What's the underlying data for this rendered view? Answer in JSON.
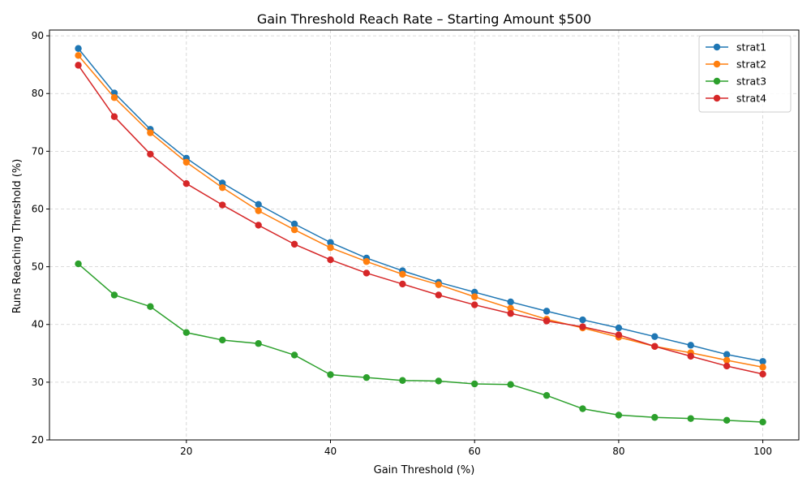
{
  "chart_data": {
    "type": "line",
    "title": "Gain Threshold Reach Rate – Starting Amount $500",
    "xlabel": "Gain Threshold (%)",
    "ylabel": "Runs Reaching Threshold (%)",
    "xlim": [
      1,
      105
    ],
    "ylim": [
      20,
      91
    ],
    "xticks": [
      20,
      40,
      60,
      80,
      100
    ],
    "yticks": [
      20,
      30,
      40,
      50,
      60,
      70,
      80,
      90
    ],
    "grid": true,
    "legend_position": "top-right",
    "x": [
      5,
      10,
      15,
      20,
      25,
      30,
      35,
      40,
      45,
      50,
      55,
      60,
      65,
      70,
      75,
      80,
      85,
      90,
      95,
      100
    ],
    "series": [
      {
        "name": "strat1",
        "color": "#1f77b4",
        "values": [
          87.8,
          80.1,
          73.8,
          68.8,
          64.5,
          60.8,
          57.4,
          54.2,
          51.5,
          49.3,
          47.3,
          45.6,
          43.9,
          42.3,
          40.8,
          39.4,
          37.9,
          36.4,
          34.8,
          33.6
        ]
      },
      {
        "name": "strat2",
        "color": "#ff7f0e",
        "values": [
          86.6,
          79.3,
          73.2,
          68.1,
          63.7,
          59.7,
          56.4,
          53.3,
          50.9,
          48.7,
          46.9,
          44.8,
          42.8,
          40.9,
          39.4,
          37.8,
          36.2,
          35.1,
          33.8,
          32.6
        ]
      },
      {
        "name": "strat3",
        "color": "#2ca02c",
        "values": [
          50.5,
          45.1,
          43.1,
          38.6,
          37.3,
          36.7,
          34.7,
          31.3,
          30.8,
          30.3,
          30.2,
          29.7,
          29.6,
          27.7,
          25.4,
          24.3,
          23.9,
          23.7,
          23.4,
          23.1
        ]
      },
      {
        "name": "strat4",
        "color": "#d62728",
        "values": [
          84.9,
          76.0,
          69.5,
          64.4,
          60.7,
          57.2,
          53.9,
          51.2,
          48.9,
          47.0,
          45.1,
          43.4,
          41.9,
          40.6,
          39.6,
          38.2,
          36.2,
          34.5,
          32.8,
          31.4
        ]
      }
    ]
  }
}
